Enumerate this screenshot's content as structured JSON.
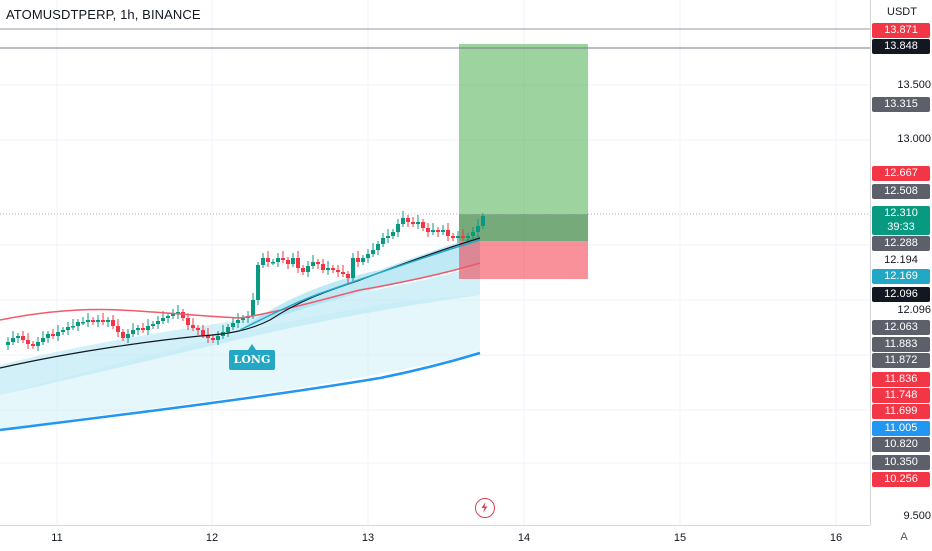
{
  "title": "ATOMUSDTPERP, 1h, BINANCE",
  "currency": "USDT",
  "price_ticks": [
    "13.500",
    "13.000",
    "12.096",
    "9.500"
  ],
  "price_tags": [
    {
      "value": "13.871",
      "bg": "#f23645"
    },
    {
      "value": "13.848",
      "bg": "#131722"
    },
    {
      "value": "13.315",
      "bg": "#5d606b"
    },
    {
      "value": "12.667",
      "bg": "#f23645"
    },
    {
      "value": "12.508",
      "bg": "#5d606b"
    },
    {
      "value": "12.310",
      "extra": "39:33",
      "bg": "#089981"
    },
    {
      "value": "12.288",
      "bg": "#5d606b"
    },
    {
      "value": "12.194",
      "bg": "none"
    },
    {
      "value": "12.169",
      "bg": "#22a8c4"
    },
    {
      "value": "12.096",
      "bg": "#131722"
    },
    {
      "value": "12.063",
      "bg": "#5d606b"
    },
    {
      "value": "11.883",
      "bg": "#5d606b"
    },
    {
      "value": "11.872",
      "bg": "#5d606b"
    },
    {
      "value": "11.836",
      "bg": "#f23645"
    },
    {
      "value": "11.748",
      "bg": "#f23645"
    },
    {
      "value": "11.699",
      "bg": "#f23645"
    },
    {
      "value": "11.005",
      "bg": "#2196f3"
    },
    {
      "value": "10.820",
      "bg": "#5d606b"
    },
    {
      "value": "10.350",
      "bg": "#5d606b"
    },
    {
      "value": "10.256",
      "bg": "#f23645"
    }
  ],
  "time_ticks": [
    "11",
    "12",
    "13",
    "14",
    "15",
    "16"
  ],
  "auto_label": "A",
  "long_label": "LONG",
  "chart_data": {
    "type": "candlestick",
    "symbol": "ATOMUSDTPERP",
    "interval": "1h",
    "exchange": "BINANCE",
    "last_price": 12.31,
    "countdown": "39:33",
    "position": {
      "side": "long",
      "entry": 12.169,
      "target": 13.848,
      "stop": 11.872
    },
    "colors": {
      "up": "#089981",
      "down": "#f23645",
      "ema_fast": "#22a8c4",
      "ema_slow": "#131722",
      "ema_mid": "#f05a6a",
      "ema_long": "#2196f3",
      "profit_zone": "#4caf50",
      "loss_zone": "#f23645"
    }
  }
}
